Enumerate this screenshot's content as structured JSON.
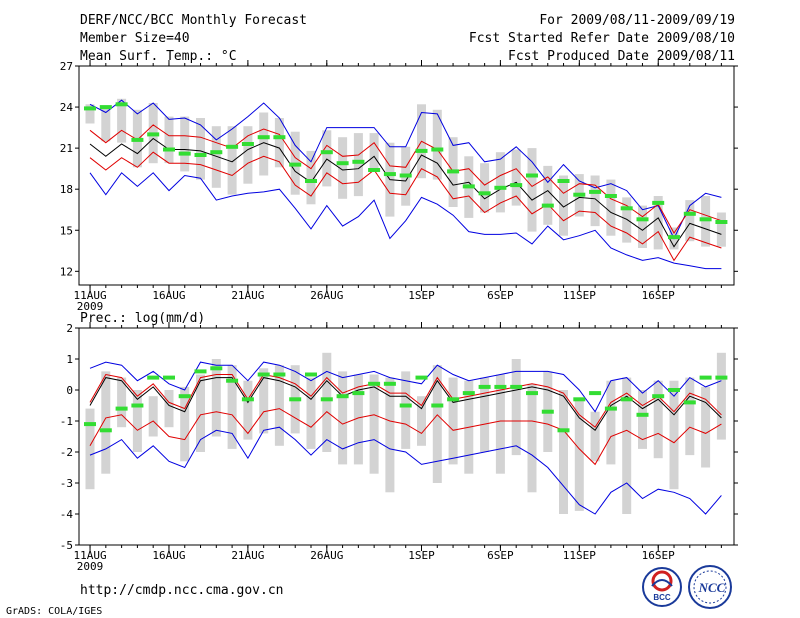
{
  "header": {
    "title": "DERF/NCC/BCC Monthly Forecast",
    "member_size": "Member Size=40",
    "variable": "Mean Surf. Temp.: °C",
    "period": "For 2009/08/11-2009/09/19",
    "start_date": "Fcst Started Refer Date 2009/08/10",
    "produced_date": "Fcst Produced Date 2009/08/11"
  },
  "footer": {
    "url": "http://cmdp.ncc.cma.gov.cn",
    "credit": "GrADS: COLA/IGES",
    "logo_bcc": "BCC",
    "logo_ncc": "NCC"
  },
  "colors": {
    "box": "#d3d3d3",
    "median": "#000000",
    "inner": "#e00000",
    "outer": "#0000e0",
    "obs": "#33dd33"
  },
  "chart_data": [
    {
      "type": "box-ensemble",
      "title": "Mean Surf. Temp.: °C",
      "ylim": [
        11,
        27
      ],
      "yticks": [
        12,
        15,
        18,
        21,
        24,
        27
      ],
      "xlabels": [
        {
          "day": 0,
          "label": "11AUG",
          "sub": "2009"
        },
        {
          "day": 5,
          "label": "16AUG"
        },
        {
          "day": 10,
          "label": "21AUG"
        },
        {
          "day": 15,
          "label": "26AUG"
        },
        {
          "day": 21,
          "label": "1SEP"
        },
        {
          "day": 26,
          "label": "6SEP"
        },
        {
          "day": 31,
          "label": "11SEP"
        },
        {
          "day": 36,
          "label": "16SEP"
        }
      ],
      "series": {
        "median": [
          21.3,
          20.4,
          21.3,
          20.6,
          21.7,
          20.9,
          20.9,
          20.8,
          20.4,
          20,
          20.9,
          21.4,
          21,
          19.3,
          18.5,
          20.2,
          19.4,
          19.5,
          20.4,
          18.7,
          18.6,
          20.5,
          19.9,
          18.3,
          18.5,
          17.3,
          18,
          18.5,
          17.2,
          17.9,
          16.7,
          17.4,
          17.3,
          16.3,
          15.8,
          15,
          15.9,
          13.8,
          15.5,
          15.1,
          14.7
        ],
        "inner_upper": [
          22.3,
          21.4,
          22.3,
          21.6,
          22.7,
          21.9,
          21.9,
          21.8,
          21.4,
          21,
          21.9,
          22.4,
          22,
          20.3,
          19.5,
          21.2,
          20.4,
          20.5,
          21.4,
          19.7,
          19.6,
          21.5,
          20.9,
          19.3,
          19.5,
          18.3,
          19,
          19.5,
          18.2,
          18.9,
          17.7,
          18.4,
          18.3,
          17.3,
          16.8,
          16,
          16.9,
          14.8,
          16.5,
          16.1,
          15.7
        ],
        "inner_lower": [
          20.3,
          19.4,
          20.3,
          19.6,
          20.7,
          19.9,
          19.9,
          19.8,
          19.4,
          19,
          19.9,
          20.4,
          20,
          18.3,
          17.5,
          19.2,
          18.4,
          18.5,
          19.4,
          17.7,
          17.6,
          19.5,
          18.9,
          17.3,
          17.5,
          16.3,
          17,
          17.5,
          16.2,
          16.9,
          15.7,
          16.4,
          16.3,
          15.3,
          14.8,
          14,
          14.9,
          12.8,
          14.5,
          14.1,
          13.7
        ],
        "outer_upper": [
          24.2,
          23.6,
          24.5,
          23.5,
          24.3,
          23.1,
          23.2,
          22.7,
          21.6,
          22.4,
          23.3,
          24.3,
          23.2,
          21.2,
          20,
          22.5,
          22.5,
          22.5,
          22.5,
          21.1,
          21.1,
          23.6,
          23.5,
          21.2,
          21.4,
          20,
          20.2,
          21.1,
          20,
          18.5,
          19.8,
          18.6,
          18.1,
          18.4,
          17.9,
          16.5,
          16.8,
          14.4,
          16.8,
          17.7,
          17.4
        ],
        "outer_lower": [
          19.2,
          17.6,
          19.2,
          18.2,
          19.2,
          17.9,
          19,
          18.8,
          17.2,
          17.5,
          17.7,
          17.8,
          18,
          16.6,
          15.1,
          16.8,
          15.3,
          16,
          17.2,
          14.4,
          15.7,
          17.4,
          16.9,
          16.1,
          14.9,
          14.7,
          14.7,
          14.8,
          14,
          15.3,
          14.3,
          14.6,
          15,
          13.7,
          13.2,
          12.8,
          13,
          12.6,
          12.4,
          12.2,
          12.2
        ],
        "box_top": [
          24.2,
          24,
          24.6,
          23.8,
          24.3,
          23.3,
          23.3,
          23.2,
          22.6,
          22.6,
          22.6,
          23.6,
          23.2,
          22.2,
          20.8,
          22.3,
          21.8,
          22.1,
          22.1,
          21.4,
          21.1,
          24.2,
          23.8,
          21.8,
          20.4,
          19.9,
          20.7,
          20.9,
          21,
          19.7,
          19,
          19.1,
          19,
          18.7,
          17.4,
          16.8,
          17.5,
          15.2,
          17.2,
          17.5,
          16.3
        ],
        "box_bottom": [
          22.8,
          21.5,
          21.4,
          19.6,
          19.9,
          19.9,
          19.3,
          18.7,
          18.1,
          17.6,
          18.4,
          19,
          19.6,
          17.6,
          16.9,
          18.2,
          17.3,
          17.5,
          19.3,
          16,
          16.8,
          18.8,
          18.7,
          16.7,
          15.9,
          16.3,
          16.3,
          16.8,
          14.9,
          15.4,
          14.6,
          16,
          15.3,
          14.6,
          14.1,
          13.7,
          13.6,
          13.6,
          14.2,
          13.8,
          13.8
        ],
        "obs": [
          23.9,
          24,
          24.2,
          21.6,
          22,
          20.9,
          20.6,
          20.5,
          20.7,
          21.1,
          21.3,
          21.8,
          21.8,
          19.8,
          18.6,
          20.7,
          19.9,
          20,
          19.4,
          19.1,
          19,
          20.8,
          20.9,
          19.3,
          18.2,
          17.7,
          18.1,
          18.3,
          19,
          16.8,
          18.6,
          17.6,
          17.8,
          17.5,
          16.6,
          15.8,
          17,
          14.5,
          16.2,
          15.8,
          15.6
        ]
      }
    },
    {
      "type": "box-ensemble",
      "title": "Prec.: log(mm/d)",
      "ylim": [
        -5,
        2
      ],
      "yticks": [
        -5,
        -4,
        -3,
        -2,
        -1,
        0,
        1,
        2
      ],
      "xlabels": [
        {
          "day": 0,
          "label": "11AUG",
          "sub": "2009"
        },
        {
          "day": 5,
          "label": "16AUG"
        },
        {
          "day": 10,
          "label": "21AUG"
        },
        {
          "day": 15,
          "label": "26AUG"
        },
        {
          "day": 21,
          "label": "1SEP"
        },
        {
          "day": 26,
          "label": "6SEP"
        },
        {
          "day": 31,
          "label": "11SEP"
        },
        {
          "day": 36,
          "label": "16SEP"
        }
      ],
      "series": {
        "median": [
          -0.5,
          0.4,
          0.3,
          -0.3,
          0.1,
          -0.5,
          -0.7,
          0.3,
          0.4,
          0.4,
          -0.4,
          0.4,
          0.3,
          0.1,
          -0.3,
          0.3,
          -0.2,
          0,
          0.1,
          -0.2,
          -0.2,
          -0.6,
          0.3,
          -0.4,
          -0.3,
          -0.2,
          -0.1,
          0,
          0.1,
          0,
          -0.2,
          -0.9,
          -1.3,
          -0.5,
          -0.2,
          -0.6,
          -0.3,
          -0.8,
          -0.2,
          -0.4,
          -0.9
        ],
        "inner_upper": [
          -0.4,
          0.5,
          0.4,
          -0.2,
          0.2,
          -0.4,
          -0.6,
          0.4,
          0.5,
          0.5,
          -0.3,
          0.5,
          0.4,
          0.2,
          -0.2,
          0.4,
          -0.1,
          0.1,
          0.2,
          -0.1,
          -0.1,
          -0.5,
          0.4,
          -0.3,
          -0.2,
          -0.1,
          0,
          0.1,
          0.2,
          0.1,
          -0.1,
          -0.8,
          -1.2,
          -0.4,
          -0.1,
          -0.5,
          -0.2,
          -0.7,
          -0.1,
          -0.3,
          -0.8
        ],
        "inner_lower": [
          -1.8,
          -0.9,
          -0.8,
          -1.3,
          -1,
          -1.5,
          -1.6,
          -0.8,
          -0.7,
          -0.8,
          -1.4,
          -0.7,
          -0.6,
          -0.9,
          -1.2,
          -0.7,
          -1.1,
          -0.9,
          -0.8,
          -1,
          -1.1,
          -1.4,
          -0.8,
          -1.3,
          -1.2,
          -1.1,
          -1,
          -1,
          -1,
          -1.1,
          -1.3,
          -1.9,
          -2.4,
          -1.5,
          -1.3,
          -1.6,
          -1.4,
          -1.7,
          -1.2,
          -1.4,
          -1.1
        ],
        "outer_upper": [
          0.7,
          0.9,
          0.8,
          0.3,
          0.6,
          0.2,
          0,
          0.9,
          0.8,
          0.8,
          0.3,
          0.9,
          0.8,
          0.6,
          0.3,
          0.6,
          0.4,
          0.5,
          0.6,
          0.4,
          0.3,
          0.2,
          0.8,
          0.5,
          0.3,
          0.4,
          0.5,
          0.6,
          0.6,
          0.6,
          0.5,
          0,
          -0.7,
          0.3,
          0.4,
          -0.1,
          0.3,
          -0.2,
          0.4,
          0.1,
          0.3
        ],
        "outer_lower": [
          -2.1,
          -1.9,
          -1.6,
          -2.2,
          -1.8,
          -2.3,
          -2.5,
          -1.6,
          -1.3,
          -1.4,
          -2.2,
          -1.3,
          -1.2,
          -1.6,
          -2.1,
          -1.6,
          -1.9,
          -1.7,
          -1.6,
          -1.9,
          -2,
          -2.4,
          -2.3,
          -2.2,
          -2.1,
          -2,
          -1.9,
          -1.8,
          -2.1,
          -2.5,
          -3.1,
          -3.7,
          -4,
          -3.3,
          -3,
          -3.5,
          -3.2,
          -3.3,
          -3.5,
          -4,
          -3.4
        ],
        "box_top": [
          -0.6,
          0.6,
          0.4,
          0,
          -0.2,
          0,
          0.1,
          0.5,
          1,
          0.8,
          0.3,
          0.7,
          0.8,
          0.8,
          0.4,
          1.2,
          0.6,
          0.5,
          0.5,
          0.4,
          0.6,
          -0.2,
          0.8,
          0.4,
          0.3,
          0.4,
          0.5,
          1,
          0.2,
          0.6,
          0,
          -0.3,
          -0.7,
          0.3,
          0.4,
          0,
          0.3,
          0.3,
          0.4,
          0.1,
          1.2
        ],
        "box_bottom": [
          -3.2,
          -2.7,
          -1.2,
          -2,
          -1.5,
          -1.2,
          -2.3,
          -2,
          -1.5,
          -1.9,
          -1.6,
          -1.4,
          -1.8,
          -1.4,
          -1.9,
          -2,
          -2.4,
          -2.4,
          -2.7,
          -3.3,
          -1.9,
          -1.8,
          -3,
          -2.4,
          -2.7,
          -2,
          -2.7,
          -2.1,
          -3.3,
          -2,
          -4,
          -3.9,
          -2.3,
          -2.4,
          -4,
          -1.9,
          -2.2,
          -3.2,
          -2.1,
          -2.5,
          -1.6
        ],
        "obs": [
          -1.1,
          -1.3,
          -0.6,
          -0.5,
          0.4,
          0.4,
          -0.2,
          0.6,
          0.7,
          0.3,
          -0.3,
          0.5,
          0.5,
          -0.3,
          0.5,
          -0.3,
          -0.2,
          -0.1,
          0.2,
          0.2,
          -0.5,
          0.4,
          -0.5,
          -0.3,
          -0.1,
          0.1,
          0.1,
          0.1,
          -0.1,
          -0.7,
          -1.3,
          -0.3,
          -0.1,
          -0.6,
          -0.3,
          -0.8,
          -0.2,
          0,
          -0.4,
          0.4,
          0.4
        ]
      }
    }
  ]
}
